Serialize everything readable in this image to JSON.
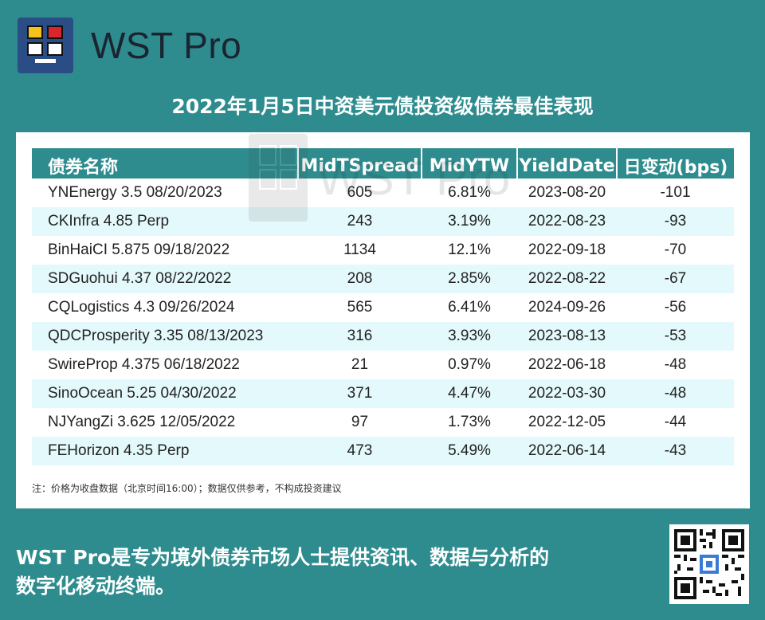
{
  "brand": {
    "name": "WST Pro",
    "logo_icon": "wst-logo-icon"
  },
  "title": "2022年1月5日中资美元债投资级债券最佳表现",
  "table": {
    "headers": [
      "债券名称",
      "MidTSpread",
      "MidYTW",
      "YieldDate",
      "日变动(bps)"
    ],
    "rows": [
      [
        "YNEnergy 3.5 08/20/2023",
        "605",
        "6.81%",
        "2023-08-20",
        "-101"
      ],
      [
        "CKInfra 4.85 Perp",
        "243",
        "3.19%",
        "2022-08-23",
        "-93"
      ],
      [
        "BinHaiCI 5.875 09/18/2022",
        "1134",
        "12.1%",
        "2022-09-18",
        "-70"
      ],
      [
        "SDGuohui 4.37 08/22/2022",
        "208",
        "2.85%",
        "2022-08-22",
        "-67"
      ],
      [
        "CQLogistics 4.3 09/26/2024",
        "565",
        "6.41%",
        "2024-09-26",
        "-56"
      ],
      [
        "QDCProsperity 3.35 08/13/2023",
        "316",
        "3.93%",
        "2023-08-13",
        "-53"
      ],
      [
        "SwireProp 4.375 06/18/2022",
        "21",
        "0.97%",
        "2022-06-18",
        "-48"
      ],
      [
        "SinoOcean 5.25 04/30/2022",
        "371",
        "4.47%",
        "2022-03-30",
        "-48"
      ],
      [
        "NJYangZi 3.625 12/05/2022",
        "97",
        "1.73%",
        "2022-12-05",
        "-44"
      ],
      [
        "FEHorizon 4.35 Perp",
        "473",
        "5.49%",
        "2022-06-14",
        "-43"
      ]
    ]
  },
  "watermark": "WST Pro",
  "note": "注：价格为收盘数据（北京时间16:00）；数据仅供参考，不构成投资建议",
  "footer": {
    "line1": "WST Pro是专为境外债券市场人士提供资讯、数据与分析的",
    "line2": "数字化移动终端。"
  },
  "qr_icon": "qr-code-icon",
  "colors": {
    "background": "#2e8c8e",
    "header_row": "#2e8c8e",
    "stripe": "#e4f9fb",
    "brand_text": "#1b2430"
  }
}
